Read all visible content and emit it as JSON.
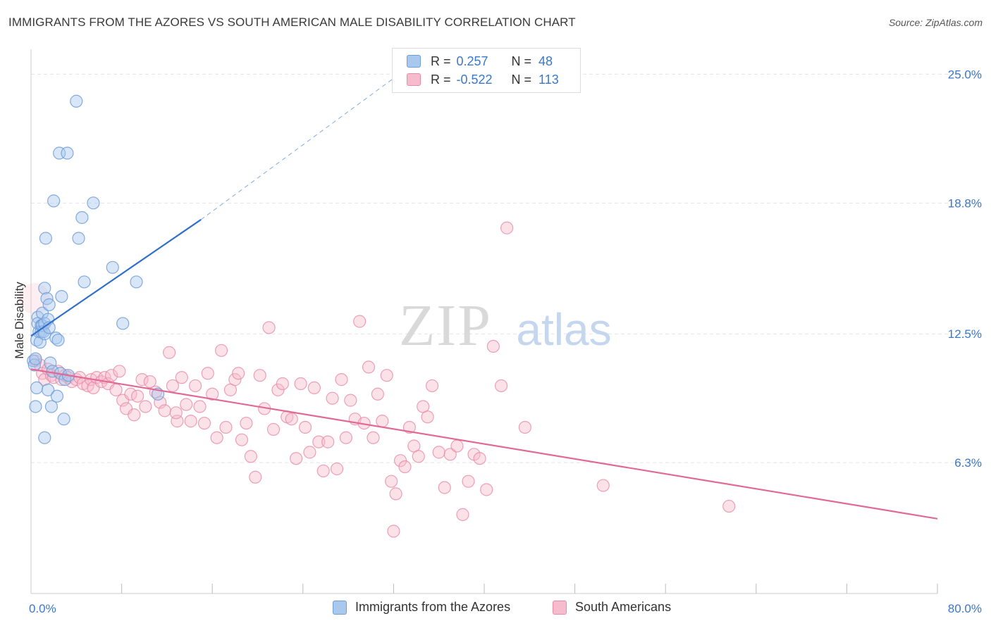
{
  "title": "IMMIGRANTS FROM THE AZORES VS SOUTH AMERICAN MALE DISABILITY CORRELATION CHART",
  "source": "Source: ZipAtlas.com",
  "watermark": {
    "zip": "ZIP",
    "atlas": "atlas"
  },
  "legend_top": {
    "r_label": "R =",
    "n_label": "N =",
    "series": [
      {
        "r": "0.257",
        "n": "48"
      },
      {
        "r": "-0.522",
        "n": "113"
      }
    ]
  },
  "legend_bottom": [
    {
      "label": "Immigrants from the Azores"
    },
    {
      "label": "South Americans"
    }
  ],
  "colors": {
    "blue_fill": "#a9c8ee",
    "blue_stroke": "#6f9ed8",
    "blue_line": "#2f6fcc",
    "pink_fill": "#f6bccd",
    "pink_stroke": "#e98aa8",
    "pink_line": "#e06a95",
    "tick_text": "#3a78c9",
    "grid": "#e3e3e3"
  },
  "chart_data": {
    "type": "scatter",
    "title": "IMMIGRANTS FROM THE AZORES VS SOUTH AMERICAN MALE DISABILITY CORRELATION CHART",
    "xlabel": "",
    "ylabel": "Male Disability",
    "xlim": [
      0,
      80
    ],
    "ylim": [
      0,
      26.2
    ],
    "x_tick_labels": [
      {
        "value": 0,
        "label": "0.0%"
      },
      {
        "value": 80,
        "label": "80.0%"
      }
    ],
    "x_minor_ticks": [
      8,
      16,
      24,
      32,
      40,
      48,
      56,
      64,
      72,
      80
    ],
    "y_tick_labels": [
      {
        "value": 6.3,
        "label": "6.3%"
      },
      {
        "value": 12.5,
        "label": "12.5%"
      },
      {
        "value": 18.8,
        "label": "18.8%"
      },
      {
        "value": 25.0,
        "label": "25.0%"
      }
    ],
    "grid": true,
    "series": [
      {
        "name": "Immigrants from the Azores",
        "color": "#a9c8ee",
        "points": [
          [
            0.2,
            11.2
          ],
          [
            0.3,
            11.0
          ],
          [
            0.4,
            11.3
          ],
          [
            0.5,
            12.2
          ],
          [
            0.5,
            9.9
          ],
          [
            0.6,
            13.3
          ],
          [
            0.6,
            13.0
          ],
          [
            0.7,
            12.6
          ],
          [
            0.8,
            12.1
          ],
          [
            0.9,
            12.9
          ],
          [
            0.9,
            12.6
          ],
          [
            1.0,
            13.5
          ],
          [
            1.0,
            12.9
          ],
          [
            1.1,
            12.6
          ],
          [
            1.2,
            13.0
          ],
          [
            1.2,
            12.5
          ],
          [
            1.2,
            14.7
          ],
          [
            1.3,
            17.1
          ],
          [
            1.4,
            14.2
          ],
          [
            1.5,
            13.2
          ],
          [
            1.5,
            9.8
          ],
          [
            1.6,
            12.8
          ],
          [
            1.6,
            13.9
          ],
          [
            1.7,
            11.1
          ],
          [
            1.8,
            9.0
          ],
          [
            1.9,
            10.7
          ],
          [
            2.0,
            18.9
          ],
          [
            2.2,
            12.3
          ],
          [
            2.3,
            9.5
          ],
          [
            2.4,
            12.2
          ],
          [
            2.5,
            21.2
          ],
          [
            2.6,
            10.6
          ],
          [
            2.7,
            14.3
          ],
          [
            2.9,
            8.4
          ],
          [
            3.2,
            21.2
          ],
          [
            3.0,
            10.3
          ],
          [
            4.0,
            23.7
          ],
          [
            4.2,
            17.1
          ],
          [
            4.5,
            18.1
          ],
          [
            4.7,
            15.0
          ],
          [
            5.5,
            18.8
          ],
          [
            7.2,
            15.7
          ],
          [
            8.1,
            13.0
          ],
          [
            9.3,
            15.0
          ],
          [
            11.2,
            9.6
          ],
          [
            1.2,
            7.5
          ],
          [
            0.4,
            9.0
          ],
          [
            3.3,
            10.5
          ]
        ],
        "trend": {
          "x": [
            0,
            15
          ],
          "y": [
            12.4,
            18.0
          ],
          "dashed_to": {
            "x": 33,
            "y": 25.2
          }
        }
      },
      {
        "name": "South Americans",
        "color": "#f6bccd",
        "points": [
          [
            0.4,
            11.2
          ],
          [
            0.8,
            11.0
          ],
          [
            1.0,
            10.6
          ],
          [
            1.2,
            10.3
          ],
          [
            1.5,
            10.8
          ],
          [
            1.8,
            10.5
          ],
          [
            2.0,
            10.4
          ],
          [
            2.4,
            10.7
          ],
          [
            2.7,
            10.3
          ],
          [
            3.0,
            10.5
          ],
          [
            3.3,
            10.4
          ],
          [
            3.6,
            10.2
          ],
          [
            4.0,
            10.3
          ],
          [
            4.3,
            10.4
          ],
          [
            4.6,
            10.1
          ],
          [
            5.0,
            10.0
          ],
          [
            5.3,
            10.3
          ],
          [
            5.5,
            9.9
          ],
          [
            5.8,
            10.4
          ],
          [
            6.2,
            10.2
          ],
          [
            6.5,
            10.4
          ],
          [
            6.8,
            10.1
          ],
          [
            7.1,
            10.5
          ],
          [
            7.5,
            9.8
          ],
          [
            7.8,
            10.7
          ],
          [
            8.1,
            9.3
          ],
          [
            8.4,
            8.9
          ],
          [
            8.8,
            9.6
          ],
          [
            9.1,
            8.6
          ],
          [
            9.4,
            9.5
          ],
          [
            9.8,
            10.3
          ],
          [
            10.1,
            9.0
          ],
          [
            10.5,
            10.2
          ],
          [
            11.0,
            9.7
          ],
          [
            11.4,
            9.2
          ],
          [
            11.8,
            8.8
          ],
          [
            12.2,
            11.6
          ],
          [
            12.5,
            10.0
          ],
          [
            12.9,
            8.3
          ],
          [
            13.3,
            10.4
          ],
          [
            13.7,
            9.1
          ],
          [
            14.1,
            8.3
          ],
          [
            14.5,
            10.0
          ],
          [
            14.9,
            9.0
          ],
          [
            15.3,
            8.2
          ],
          [
            15.6,
            10.6
          ],
          [
            16.0,
            9.6
          ],
          [
            16.4,
            7.5
          ],
          [
            16.8,
            11.7
          ],
          [
            17.2,
            8.0
          ],
          [
            17.6,
            9.8
          ],
          [
            18.0,
            10.3
          ],
          [
            18.3,
            10.6
          ],
          [
            18.6,
            7.4
          ],
          [
            19.0,
            8.2
          ],
          [
            19.4,
            6.6
          ],
          [
            19.8,
            5.6
          ],
          [
            20.2,
            10.5
          ],
          [
            20.6,
            8.9
          ],
          [
            21.0,
            12.8
          ],
          [
            21.4,
            7.9
          ],
          [
            21.8,
            9.8
          ],
          [
            22.2,
            10.1
          ],
          [
            22.6,
            8.5
          ],
          [
            23.0,
            8.4
          ],
          [
            23.4,
            6.5
          ],
          [
            23.8,
            10.1
          ],
          [
            24.2,
            8.0
          ],
          [
            24.6,
            6.8
          ],
          [
            25.0,
            9.9
          ],
          [
            25.4,
            7.3
          ],
          [
            25.8,
            5.9
          ],
          [
            26.2,
            7.3
          ],
          [
            26.6,
            9.4
          ],
          [
            27.0,
            6.0
          ],
          [
            27.4,
            10.3
          ],
          [
            27.8,
            7.5
          ],
          [
            28.2,
            9.3
          ],
          [
            28.6,
            8.4
          ],
          [
            29.0,
            13.1
          ],
          [
            29.4,
            8.2
          ],
          [
            29.8,
            10.9
          ],
          [
            30.2,
            7.5
          ],
          [
            30.6,
            9.6
          ],
          [
            31.0,
            8.3
          ],
          [
            31.4,
            10.5
          ],
          [
            31.8,
            5.4
          ],
          [
            32.2,
            4.8
          ],
          [
            32.6,
            6.4
          ],
          [
            33.0,
            6.1
          ],
          [
            33.4,
            8.0
          ],
          [
            33.8,
            7.1
          ],
          [
            34.2,
            6.6
          ],
          [
            34.6,
            9.0
          ],
          [
            35.0,
            8.5
          ],
          [
            35.4,
            10.0
          ],
          [
            36.0,
            6.8
          ],
          [
            36.5,
            5.1
          ],
          [
            37.0,
            6.7
          ],
          [
            37.6,
            7.1
          ],
          [
            38.1,
            3.8
          ],
          [
            38.6,
            5.4
          ],
          [
            39.1,
            6.7
          ],
          [
            39.6,
            6.5
          ],
          [
            40.2,
            5.0
          ],
          [
            40.8,
            11.9
          ],
          [
            42.0,
            17.6
          ],
          [
            43.6,
            8.0
          ],
          [
            50.5,
            5.2
          ],
          [
            61.6,
            4.2
          ],
          [
            32.0,
            3.0
          ],
          [
            41.5,
            10.0
          ],
          [
            12.8,
            8.7
          ]
        ],
        "trend": {
          "x": [
            0,
            80
          ],
          "y": [
            10.8,
            3.6
          ]
        }
      }
    ]
  }
}
